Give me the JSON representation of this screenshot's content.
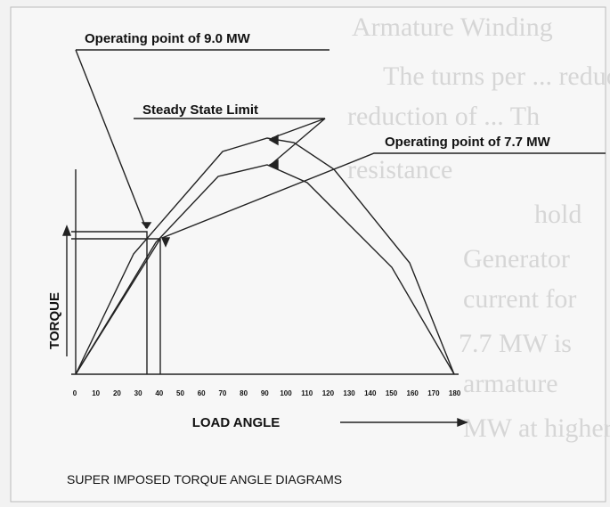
{
  "title": "SUPER IMPOSED TORQUE ANGLE DIAGRAMS",
  "annotations": [
    "Operating point of 9.0 MW",
    "Steady State Limit",
    "Operating point of 7.7 MW"
  ],
  "y_axis_label": "TORQUE",
  "x_axis_label": "LOAD ANGLE",
  "x_ticks": [
    "0",
    "10",
    "20",
    "30",
    "40",
    "50",
    "60",
    "70",
    "80",
    "90",
    "100",
    "110",
    "120",
    "130",
    "140",
    "150",
    "160",
    "170",
    "180"
  ],
  "background_text": [
    "Armature Winding",
    "The turns per ... reduc",
    "reduction of ... Th",
    "resistance",
    "hold",
    "Generator",
    "current for",
    "7.7 MW is",
    "armature",
    "MW at higher out"
  ]
}
